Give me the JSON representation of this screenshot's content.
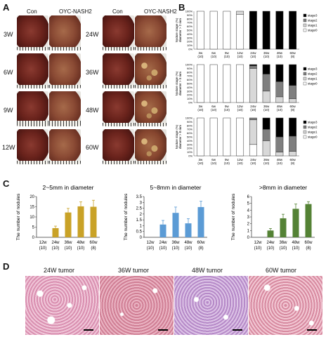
{
  "panels": {
    "A": {
      "letter": "A",
      "col_headers": [
        "Con",
        "OYC-NASH2",
        "Con",
        "OYC-NASH2"
      ],
      "rows_left": [
        "3W",
        "6W",
        "9W",
        "12W"
      ],
      "rows_right": [
        "24W",
        "36W",
        "48W",
        "60W"
      ]
    },
    "B": {
      "letter": "B",
      "x_labels": [
        "3w",
        "6w",
        "9w",
        "12w",
        "24w",
        "36w",
        "48w",
        "60w"
      ],
      "n_labels": [
        "(10)",
        "(10)",
        "(10)",
        "(10)",
        "(10)",
        "(10)",
        "(10)",
        "(8)"
      ]
    },
    "C": {
      "letter": "C"
    },
    "D": {
      "letter": "D",
      "labels": [
        "24W tumor",
        "36W tumor",
        "48W tumor",
        "60W tumor"
      ]
    }
  },
  "chart_data": [
    {
      "id": "B1",
      "type": "bar",
      "stacked": true,
      "ylabel": "Nodule stage (%)\ndiameter > 2 mm",
      "yticks": [
        "0%",
        "10%",
        "20%",
        "30%",
        "40%",
        "50%",
        "60%",
        "70%",
        "80%",
        "90%",
        "100%"
      ],
      "ylim": [
        0,
        100
      ],
      "categories": [
        "3w",
        "6w",
        "9w",
        "12w",
        "24w",
        "36w",
        "48w",
        "60w"
      ],
      "legend": [
        "stage3",
        "stage2",
        "stage1",
        "stage0"
      ],
      "series": [
        {
          "name": "stage0",
          "values": [
            100,
            100,
            100,
            92,
            0,
            0,
            0,
            0
          ]
        },
        {
          "name": "stage1",
          "values": [
            0,
            0,
            0,
            8,
            0,
            0,
            0,
            0
          ]
        },
        {
          "name": "stage2",
          "values": [
            0,
            0,
            0,
            0,
            0,
            0,
            0,
            0
          ]
        },
        {
          "name": "stage3",
          "values": [
            0,
            0,
            0,
            0,
            100,
            100,
            100,
            100
          ]
        }
      ],
      "colors": {
        "stage0": "#ffffff",
        "stage1": "#d8d8d8",
        "stage2": "#7f7f7f",
        "stage3": "#000000"
      }
    },
    {
      "id": "B2",
      "type": "bar",
      "stacked": true,
      "ylabel": "Nodule stage (%)\ndiameter > 5 mm",
      "yticks": [
        "0%",
        "10%",
        "20%",
        "30%",
        "40%",
        "50%",
        "60%",
        "70%",
        "80%",
        "90%",
        "100%"
      ],
      "ylim": [
        0,
        100
      ],
      "categories": [
        "3w",
        "6w",
        "9w",
        "12w",
        "24w",
        "36w",
        "48w",
        "60w"
      ],
      "legend": [
        "stage3",
        "stage2",
        "stage1",
        "stage0"
      ],
      "series": [
        {
          "name": "stage0",
          "values": [
            100,
            100,
            100,
            100,
            0,
            0,
            0,
            0
          ]
        },
        {
          "name": "stage1",
          "values": [
            0,
            0,
            0,
            0,
            90,
            30,
            15,
            10
          ]
        },
        {
          "name": "stage2",
          "values": [
            0,
            0,
            0,
            0,
            7,
            45,
            40,
            35
          ]
        },
        {
          "name": "stage3",
          "values": [
            0,
            0,
            0,
            0,
            3,
            25,
            45,
            55
          ]
        }
      ],
      "colors": {
        "stage0": "#ffffff",
        "stage1": "#d8d8d8",
        "stage2": "#7f7f7f",
        "stage3": "#000000"
      }
    },
    {
      "id": "B3",
      "type": "bar",
      "stacked": true,
      "ylabel": "Nodule stage (%)\ndiameter > 8 mm",
      "yticks": [
        "0%",
        "10%",
        "20%",
        "30%",
        "40%",
        "50%",
        "60%",
        "70%",
        "80%",
        "90%",
        "100%"
      ],
      "ylim": [
        0,
        100
      ],
      "categories": [
        "3w",
        "6w",
        "9w",
        "12w",
        "24w",
        "36w",
        "48w",
        "60w"
      ],
      "legend": [
        "stage3",
        "stage2",
        "stage1",
        "stage0"
      ],
      "series": [
        {
          "name": "stage0",
          "values": [
            100,
            100,
            100,
            100,
            30,
            0,
            0,
            0
          ]
        },
        {
          "name": "stage1",
          "values": [
            0,
            0,
            0,
            0,
            65,
            40,
            10,
            12
          ]
        },
        {
          "name": "stage2",
          "values": [
            0,
            0,
            0,
            0,
            5,
            30,
            40,
            40
          ]
        },
        {
          "name": "stage3",
          "values": [
            0,
            0,
            0,
            0,
            0,
            30,
            50,
            48
          ]
        }
      ],
      "colors": {
        "stage0": "#ffffff",
        "stage1": "#d8d8d8",
        "stage2": "#7f7f7f",
        "stage3": "#000000"
      }
    },
    {
      "id": "C1",
      "type": "bar",
      "title": "2~5mm in diameter",
      "ylabel": "The number of nodules",
      "ylim": [
        0,
        20
      ],
      "yticks": [
        0,
        5,
        10,
        15,
        20
      ],
      "categories": [
        "12w",
        "24w",
        "36w",
        "48w",
        "60w"
      ],
      "n_labels": [
        "(10)",
        "(10)",
        "(10)",
        "(10)",
        "(8)"
      ],
      "values": [
        0,
        4.5,
        12.2,
        15.2,
        15.0
      ],
      "errors": [
        0,
        1.0,
        2.0,
        2.2,
        3.2
      ],
      "color": "#c9a227"
    },
    {
      "id": "C2",
      "type": "bar",
      "title": "5~8mm in diameter",
      "ylabel": "The number of nodules",
      "ylim": [
        0,
        3.5
      ],
      "yticks": [
        0,
        0.5,
        1,
        1.5,
        2,
        2.5,
        3,
        3.5
      ],
      "categories": [
        "12w",
        "24w",
        "36w",
        "48w",
        "60w"
      ],
      "n_labels": [
        "(10)",
        "(10)",
        "(10)",
        "(10)",
        "(8)"
      ],
      "values": [
        0,
        1.1,
        2.1,
        1.2,
        2.6
      ],
      "errors": [
        0,
        0.35,
        0.5,
        0.4,
        0.5
      ],
      "color": "#5b9bd5"
    },
    {
      "id": "C3",
      "type": "bar",
      "title": ">8mm in diameter",
      "ylabel": "The number of nodules",
      "ylim": [
        0,
        6
      ],
      "yticks": [
        0,
        1,
        2,
        3,
        4,
        5,
        6
      ],
      "categories": [
        "12w",
        "24w",
        "36w",
        "48w",
        "60w"
      ],
      "n_labels": [
        "(10)",
        "(10)",
        "(10)",
        "(10)",
        "(8)"
      ],
      "values": [
        0,
        1.0,
        2.8,
        4.2,
        4.9
      ],
      "errors": [
        0,
        0.3,
        0.6,
        0.7,
        0.35
      ],
      "color": "#548235"
    }
  ]
}
